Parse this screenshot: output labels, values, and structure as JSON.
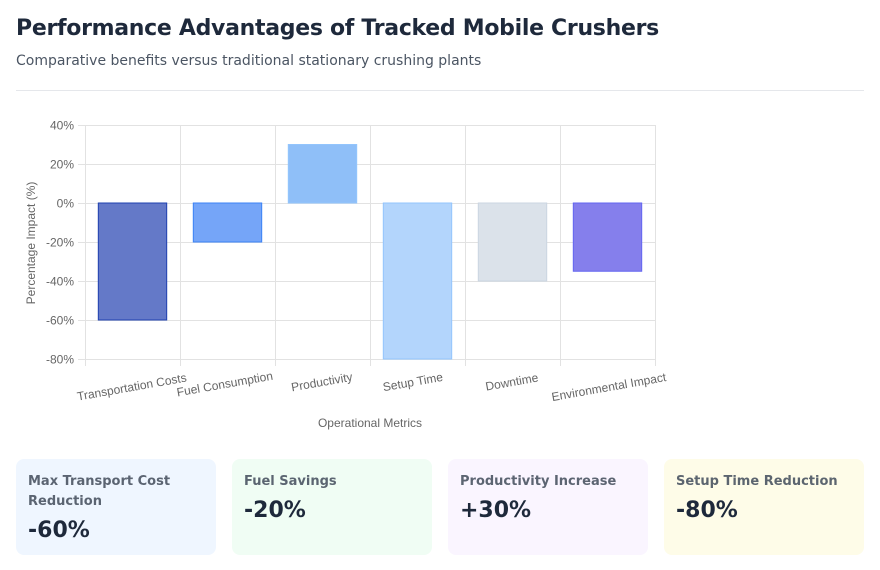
{
  "header": {
    "title": "Performance Advantages of Tracked Mobile Crushers",
    "subtitle": "Comparative benefits versus traditional stationary crushing plants"
  },
  "chart_data": {
    "type": "bar",
    "title": "",
    "xlabel": "Operational Metrics",
    "ylabel": "Percentage Impact (%)",
    "categories": [
      "Transportation Costs",
      "Fuel Consumption",
      "Productivity",
      "Setup Time",
      "Downtime",
      "Environmental Impact"
    ],
    "values": [
      -60,
      -20,
      30,
      -80,
      -40,
      -35
    ],
    "ylim": [
      -80,
      40
    ],
    "yticks": [
      40,
      20,
      0,
      -20,
      -40,
      -60,
      -80
    ],
    "ytick_labels": [
      "40%",
      "20%",
      "0%",
      "-20%",
      "-40%",
      "-60%",
      "-80%"
    ],
    "grid": true,
    "legend": "none",
    "bar_colors": [
      "#6479c8",
      "#75a5f8",
      "#8fbff8",
      "#b3d5fc",
      "#dbe2ea",
      "#857fec"
    ],
    "bar_border_colors": [
      "#1e40af",
      "#3b82f6",
      "#93c5fd",
      "#93c5fd",
      "#cbd5e1",
      "#6366f1"
    ]
  },
  "cards": [
    {
      "label": "Max Transport Cost Reduction",
      "value": "-60%",
      "bg": "#eff6ff"
    },
    {
      "label": "Fuel Savings",
      "value": "-20%",
      "bg": "#f0fdf4"
    },
    {
      "label": "Productivity Increase",
      "value": "+30%",
      "bg": "#faf5ff"
    },
    {
      "label": "Setup Time Reduction",
      "value": "-80%",
      "bg": "#fefce8"
    }
  ]
}
